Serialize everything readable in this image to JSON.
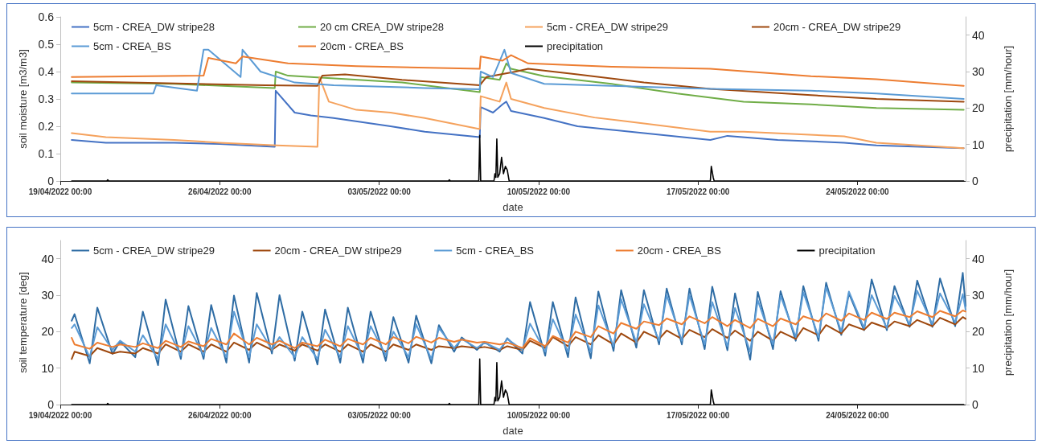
{
  "chart_data": [
    {
      "type": "line",
      "xlabel": "date",
      "ylabel": "soil moisture [m3/m3]",
      "y2label": "precipitation [mm/hour]",
      "xlim": [
        "2022-04-19T00:00",
        "2022-05-28T18:00"
      ],
      "xticks": [
        {
          "value": "2022-04-19T00:00",
          "label": "19/04/2022 00:00"
        },
        {
          "value": "2022-04-26T00:00",
          "label": "26/04/2022 00:00"
        },
        {
          "value": "2022-05-03T00:00",
          "label": "03/05/2022 00:00"
        },
        {
          "value": "2022-05-10T00:00",
          "label": "10/05/2022 00:00"
        },
        {
          "value": "2022-05-17T00:00",
          "label": "17/05/2022 00:00"
        },
        {
          "value": "2022-05-24T00:00",
          "label": "24/05/2022 00:00"
        }
      ],
      "ylim": [
        0,
        0.6
      ],
      "yticks": [
        0,
        0.1,
        0.2,
        0.3,
        0.4,
        0.5,
        0.6
      ],
      "y2lim": [
        0,
        45
      ],
      "y2ticks": [
        0,
        10,
        20,
        30,
        40
      ],
      "grid": false,
      "legend": "top",
      "marker": "none",
      "series": [
        {
          "name": "5cm - CREA_DW stripe28",
          "color": "#4472c4",
          "x": [
            "2022-04-19T12:00",
            "2022-04-21T00:00",
            "2022-04-24T00:00",
            "2022-04-26T00:00",
            "2022-04-28T10:00",
            "2022-04-28T11:00",
            "2022-04-29T07:00",
            "2022-04-30T00:00",
            "2022-05-01T00:00",
            "2022-05-03T12:00",
            "2022-05-05T00:00",
            "2022-05-07T10:00",
            "2022-05-07T11:00",
            "2022-05-08T00:00",
            "2022-05-08T10:00",
            "2022-05-08T14:00",
            "2022-05-08T19:00",
            "2022-05-10T06:00",
            "2022-05-11T17:00",
            "2022-05-14T15:00",
            "2022-05-17T13:00",
            "2022-05-18T07:00",
            "2022-05-20T12:00",
            "2022-05-23T10:00",
            "2022-05-24T20:00",
            "2022-05-28T16:00"
          ],
          "values": [
            0.15,
            0.14,
            0.14,
            0.135,
            0.125,
            0.33,
            0.25,
            0.24,
            0.23,
            0.2,
            0.18,
            0.16,
            0.27,
            0.25,
            0.28,
            0.29,
            0.256,
            0.23,
            0.2,
            0.175,
            0.15,
            0.165,
            0.15,
            0.14,
            0.13,
            0.12
          ]
        },
        {
          "name": "20 cm CREA_DW stripe28",
          "color": "#70ad47",
          "x": [
            "2022-04-19T12:00",
            "2022-04-24T00:00",
            "2022-04-28T10:00",
            "2022-04-28T11:00",
            "2022-04-29T00:00",
            "2022-04-30T00:00",
            "2022-05-04T00:00",
            "2022-05-07T10:00",
            "2022-05-07T11:00",
            "2022-05-08T07:00",
            "2022-05-08T14:00",
            "2022-05-08T19:00",
            "2022-05-10T06:00",
            "2022-05-13T05:00",
            "2022-05-16T02:00",
            "2022-05-19T00:00",
            "2022-05-21T23:00",
            "2022-05-24T20:00",
            "2022-05-28T16:00"
          ],
          "values": [
            0.36,
            0.355,
            0.34,
            0.4,
            0.385,
            0.38,
            0.36,
            0.325,
            0.38,
            0.37,
            0.43,
            0.41,
            0.383,
            0.355,
            0.32,
            0.29,
            0.28,
            0.267,
            0.26
          ]
        },
        {
          "name": "5cm - CREA_DW stripe29",
          "color": "#f5a25d",
          "x": [
            "2022-04-19T12:00",
            "2022-04-21T00:00",
            "2022-04-24T00:00",
            "2022-04-26T00:00",
            "2022-04-28T12:00",
            "2022-04-30T07:00",
            "2022-04-30T09:00",
            "2022-04-30T19:00",
            "2022-05-02T00:00",
            "2022-05-03T12:00",
            "2022-05-05T00:00",
            "2022-05-07T10:00",
            "2022-05-07T11:00",
            "2022-05-08T07:00",
            "2022-05-08T14:00",
            "2022-05-08T19:00",
            "2022-05-10T06:00",
            "2022-05-12T11:00",
            "2022-05-14T15:00",
            "2022-05-17T13:00",
            "2022-05-19T00:00",
            "2022-05-23T10:00",
            "2022-05-24T20:00",
            "2022-05-28T16:00"
          ],
          "values": [
            0.175,
            0.16,
            0.15,
            0.14,
            0.13,
            0.125,
            0.38,
            0.29,
            0.26,
            0.25,
            0.23,
            0.19,
            0.31,
            0.29,
            0.36,
            0.3,
            0.267,
            0.232,
            0.21,
            0.18,
            0.18,
            0.163,
            0.14,
            0.12
          ]
        },
        {
          "name": "20cm - CREA_DW stripe29",
          "color": "#9e480e",
          "x": [
            "2022-04-19T12:00",
            "2022-04-28T00:00",
            "2022-04-30T07:00",
            "2022-04-30T12:00",
            "2022-05-01T12:00",
            "2022-05-04T00:00",
            "2022-05-07T10:00",
            "2022-05-07T17:00",
            "2022-05-09T00:00",
            "2022-05-09T13:00",
            "2022-05-11T17:00",
            "2022-05-14T15:00",
            "2022-05-17T13:00",
            "2022-05-21T23:00",
            "2022-05-24T20:00",
            "2022-05-28T16:00"
          ],
          "values": [
            0.365,
            0.35,
            0.348,
            0.385,
            0.39,
            0.37,
            0.35,
            0.38,
            0.4,
            0.41,
            0.39,
            0.36,
            0.337,
            0.314,
            0.3,
            0.29
          ]
        },
        {
          "name": "5cm - CREA_BS",
          "color": "#5b9bd5",
          "x": [
            "2022-04-19T12:00",
            "2022-04-23T02:00",
            "2022-04-23T05:00",
            "2022-04-25T00:00",
            "2022-04-25T07:00",
            "2022-04-25T12:00",
            "2022-04-26T22:00",
            "2022-04-27T00:00",
            "2022-04-27T19:00",
            "2022-04-29T07:00",
            "2022-05-01T00:00",
            "2022-05-05T00:00",
            "2022-05-07T10:00",
            "2022-05-07T11:00",
            "2022-05-08T00:00",
            "2022-05-08T12:00",
            "2022-05-08T19:00",
            "2022-05-10T06:00",
            "2022-05-13T05:00",
            "2022-05-17T13:00",
            "2022-05-21T23:00",
            "2022-05-24T20:00",
            "2022-05-28T16:00"
          ],
          "values": [
            0.32,
            0.32,
            0.35,
            0.33,
            0.48,
            0.48,
            0.38,
            0.48,
            0.4,
            0.36,
            0.35,
            0.34,
            0.335,
            0.4,
            0.38,
            0.48,
            0.395,
            0.355,
            0.348,
            0.337,
            0.33,
            0.32,
            0.3
          ]
        },
        {
          "name": "20cm - CREA_BS",
          "color": "#ed7d31",
          "x": [
            "2022-04-19T12:00",
            "2022-04-25T07:00",
            "2022-04-25T12:00",
            "2022-04-26T17:00",
            "2022-04-27T00:00",
            "2022-04-29T00:00",
            "2022-05-02T00:00",
            "2022-05-07T10:00",
            "2022-05-07T11:00",
            "2022-05-08T10:00",
            "2022-05-08T19:00",
            "2022-05-09T13:00",
            "2022-05-13T05:00",
            "2022-05-17T13:00",
            "2022-05-21T23:00",
            "2022-05-24T20:00",
            "2022-05-28T16:00"
          ],
          "values": [
            0.38,
            0.385,
            0.45,
            0.43,
            0.455,
            0.43,
            0.42,
            0.41,
            0.455,
            0.44,
            0.46,
            0.43,
            0.418,
            0.41,
            0.383,
            0.372,
            0.348
          ]
        },
        {
          "name": "precipitation",
          "color": "#000000",
          "axis": "y2",
          "x": [
            "2022-04-19T12:00",
            "2022-04-21T01:00",
            "2022-04-21T02:00",
            "2022-04-21T03:00",
            "2022-05-06T01:00",
            "2022-05-06T02:00",
            "2022-05-06T03:00",
            "2022-05-07T09:00",
            "2022-05-07T10:00",
            "2022-05-07T11:00",
            "2022-05-08T01:00",
            "2022-05-08T02:00",
            "2022-05-08T03:00",
            "2022-05-08T04:00",
            "2022-05-08T05:00",
            "2022-05-08T07:00",
            "2022-05-08T09:00",
            "2022-05-08T11:00",
            "2022-05-08T13:00",
            "2022-05-08T15:00",
            "2022-05-08T17:00",
            "2022-05-17T13:00",
            "2022-05-17T14:00",
            "2022-05-17T16:00",
            "2022-05-17T17:00",
            "2022-05-28T16:00"
          ],
          "values": [
            0,
            0,
            0.3,
            0,
            0,
            0.3,
            0,
            0,
            12.5,
            0,
            0,
            2,
            1,
            11.5,
            1,
            2,
            6.5,
            2,
            4,
            3,
            0,
            0,
            4,
            1,
            0,
            0
          ]
        }
      ]
    },
    {
      "type": "line",
      "xlabel": "date",
      "ylabel": "soil temperature [deg]",
      "y2label": "precipitation [mm/hour]",
      "xlim": [
        "2022-04-19T00:00",
        "2022-05-28T18:00"
      ],
      "xticks": [
        {
          "value": "2022-04-19T00:00",
          "label": "19/04/2022 00:00"
        },
        {
          "value": "2022-04-26T00:00",
          "label": "26/04/2022 00:00"
        },
        {
          "value": "2022-05-03T00:00",
          "label": "03/05/2022 00:00"
        },
        {
          "value": "2022-05-10T00:00",
          "label": "10/05/2022 00:00"
        },
        {
          "value": "2022-05-17T00:00",
          "label": "17/05/2022 00:00"
        },
        {
          "value": "2022-05-24T00:00",
          "label": "24/05/2022 00:00"
        }
      ],
      "ylim": [
        0,
        45
      ],
      "yticks": [
        0,
        10,
        20,
        30,
        40
      ],
      "y2lim": [
        0,
        45
      ],
      "y2ticks": [
        0,
        10,
        20,
        30,
        40
      ],
      "grid": false,
      "legend": "top",
      "marker": "none",
      "x": [
        "2022-04-19T12:00",
        "2022-04-19T15:00",
        "2022-04-20T07:00",
        "2022-04-20T15:00",
        "2022-04-21T07:00",
        "2022-04-21T15:00",
        "2022-04-22T07:00",
        "2022-04-22T15:00",
        "2022-04-23T07:00",
        "2022-04-23T15:00",
        "2022-04-24T07:00",
        "2022-04-24T15:00",
        "2022-04-25T07:00",
        "2022-04-25T15:00",
        "2022-04-26T07:00",
        "2022-04-26T15:00",
        "2022-04-27T07:00",
        "2022-04-27T15:00",
        "2022-04-28T07:00",
        "2022-04-28T15:00",
        "2022-04-29T07:00",
        "2022-04-29T15:00",
        "2022-04-30T07:00",
        "2022-04-30T15:00",
        "2022-05-01T07:00",
        "2022-05-01T15:00",
        "2022-05-02T07:00",
        "2022-05-02T15:00",
        "2022-05-03T07:00",
        "2022-05-03T15:00",
        "2022-05-04T07:00",
        "2022-05-04T15:00",
        "2022-05-05T07:00",
        "2022-05-05T15:00",
        "2022-05-06T07:00",
        "2022-05-06T15:00",
        "2022-05-07T07:00",
        "2022-05-07T15:00",
        "2022-05-08T07:00",
        "2022-05-08T15:00",
        "2022-05-09T07:00",
        "2022-05-09T15:00",
        "2022-05-10T07:00",
        "2022-05-10T15:00",
        "2022-05-11T07:00",
        "2022-05-11T15:00",
        "2022-05-12T07:00",
        "2022-05-12T15:00",
        "2022-05-13T07:00",
        "2022-05-13T15:00",
        "2022-05-14T07:00",
        "2022-05-14T15:00",
        "2022-05-15T07:00",
        "2022-05-15T15:00",
        "2022-05-16T07:00",
        "2022-05-16T15:00",
        "2022-05-17T07:00",
        "2022-05-17T15:00",
        "2022-05-18T07:00",
        "2022-05-18T15:00",
        "2022-05-19T07:00",
        "2022-05-19T15:00",
        "2022-05-20T07:00",
        "2022-05-20T15:00",
        "2022-05-21T07:00",
        "2022-05-21T15:00",
        "2022-05-22T07:00",
        "2022-05-22T15:00",
        "2022-05-23T07:00",
        "2022-05-23T15:00",
        "2022-05-24T07:00",
        "2022-05-24T15:00",
        "2022-05-25T07:00",
        "2022-05-25T15:00",
        "2022-05-26T07:00",
        "2022-05-26T15:00",
        "2022-05-27T07:00",
        "2022-05-27T15:00",
        "2022-05-28T07:00",
        "2022-05-28T15:00",
        "2022-05-28T18:00"
      ],
      "series": [
        {
          "name": "5cm - CREA_DW stripe29",
          "color": "#2e6ca4",
          "values": [
            23,
            24.8,
            11.3,
            26.6,
            13.9,
            17.3,
            13,
            25.5,
            10.8,
            28.8,
            12.5,
            27,
            12.5,
            27.3,
            11.5,
            29.9,
            11.5,
            30.6,
            14,
            30,
            12,
            25.5,
            11,
            26.1,
            11.5,
            26.6,
            11.5,
            25.5,
            12,
            24,
            11.5,
            24.4,
            11.3,
            21.8,
            14.5,
            18.4,
            15,
            17.1,
            14.5,
            18.2,
            14,
            28.1,
            13.4,
            28.1,
            13,
            29.4,
            12.7,
            31,
            14.7,
            31.4,
            15.6,
            31.4,
            16.5,
            31.8,
            16.5,
            31.8,
            15.2,
            32.3,
            14.9,
            30.5,
            12.3,
            30.9,
            15.2,
            31.1,
            17.5,
            32.5,
            17.5,
            33.4,
            19.1,
            30.5,
            20.4,
            34.3,
            20.4,
            32.5,
            21.3,
            34,
            21.3,
            34.6,
            21.5,
            36.1,
            27
          ]
        },
        {
          "name": "20cm - CREA_DW stripe29",
          "color": "#9e480e",
          "values": [
            12.5,
            14.5,
            13.3,
            15.5,
            14,
            14.5,
            14,
            15.5,
            14,
            16.5,
            14.5,
            16.5,
            14.5,
            16.5,
            14.5,
            17,
            15,
            17,
            15,
            16.5,
            14.8,
            16.5,
            14.8,
            16.5,
            14.5,
            16.5,
            14.5,
            16.5,
            14.5,
            16.5,
            15,
            16.5,
            15,
            16,
            15.5,
            16,
            15.5,
            15.8,
            15,
            16,
            15,
            17.5,
            15.5,
            18.5,
            16,
            18.5,
            16.5,
            19,
            16.5,
            19.5,
            17,
            20,
            18,
            20.3,
            18,
            20.5,
            18.5,
            20.7,
            18.3,
            20.3,
            17.5,
            20,
            17.5,
            20,
            18,
            21,
            19,
            21.8,
            19.5,
            22,
            20.5,
            22.5,
            21,
            22.8,
            21.5,
            23.2,
            21.5,
            23.8,
            22,
            24,
            23.5
          ]
        },
        {
          "name": "5cm - CREA_BS",
          "color": "#5b9bd5",
          "values": [
            21,
            22,
            13,
            21.2,
            15,
            17.5,
            14.5,
            19,
            12.5,
            22,
            13.5,
            21.5,
            13.5,
            21,
            13,
            25.5,
            13,
            22,
            15,
            18.5,
            13,
            18.5,
            12.5,
            20.5,
            13,
            21.5,
            13,
            21.5,
            13.5,
            20,
            13,
            22,
            12.5,
            21,
            15.5,
            18,
            15.5,
            17,
            15,
            18,
            15,
            22.2,
            14.5,
            23.4,
            14.5,
            24.7,
            14.5,
            27.2,
            16,
            28.9,
            17,
            27.5,
            17.5,
            30,
            17.5,
            30,
            16.5,
            28.1,
            16,
            26.5,
            14.5,
            28.6,
            16.5,
            29.8,
            18.5,
            30.8,
            18.5,
            32.2,
            20,
            31,
            21,
            30,
            21,
            29.8,
            22,
            31.2,
            22,
            30.5,
            22.5,
            30.3,
            26
          ]
        },
        {
          "name": "20cm - CREA_BS",
          "color": "#ed7d31",
          "values": [
            18.3,
            16.5,
            15.3,
            17,
            15.8,
            16.5,
            15.8,
            16.8,
            15.5,
            17.5,
            15.8,
            17.3,
            16,
            18,
            16.5,
            19.5,
            16.5,
            18.3,
            16.5,
            17.5,
            15.5,
            17,
            16,
            17.8,
            16,
            18,
            16.5,
            18.3,
            16.5,
            18.5,
            16.8,
            18.6,
            17,
            18.3,
            17.2,
            17.8,
            17,
            17.2,
            16.5,
            17,
            15.5,
            18.2,
            16,
            18.8,
            17,
            20,
            18.5,
            21.5,
            19.5,
            22.4,
            20.8,
            22.8,
            21.8,
            23.6,
            22,
            24.2,
            22.3,
            24,
            21.5,
            23.2,
            21,
            23.5,
            21.5,
            23.6,
            22,
            24.2,
            22.8,
            25,
            23,
            25,
            23.2,
            25.2,
            23.5,
            25.2,
            24,
            25.6,
            24,
            25.7,
            24.2,
            25.8,
            25.5
          ]
        },
        {
          "name": "precipitation",
          "color": "#000000",
          "axis": "y2",
          "x": [
            "2022-04-19T12:00",
            "2022-04-21T01:00",
            "2022-04-21T02:00",
            "2022-04-21T03:00",
            "2022-05-06T01:00",
            "2022-05-06T02:00",
            "2022-05-06T03:00",
            "2022-05-07T09:00",
            "2022-05-07T10:00",
            "2022-05-07T11:00",
            "2022-05-08T01:00",
            "2022-05-08T02:00",
            "2022-05-08T03:00",
            "2022-05-08T04:00",
            "2022-05-08T05:00",
            "2022-05-08T07:00",
            "2022-05-08T09:00",
            "2022-05-08T11:00",
            "2022-05-08T13:00",
            "2022-05-08T15:00",
            "2022-05-08T17:00",
            "2022-05-17T13:00",
            "2022-05-17T14:00",
            "2022-05-17T16:00",
            "2022-05-17T17:00",
            "2022-05-28T16:00"
          ],
          "values": [
            0,
            0,
            0.3,
            0,
            0,
            0.3,
            0,
            0,
            12.5,
            0,
            0,
            2,
            1,
            11.5,
            1,
            2,
            6.5,
            2,
            4,
            3,
            0,
            0,
            4,
            1,
            0,
            0
          ]
        }
      ]
    }
  ]
}
